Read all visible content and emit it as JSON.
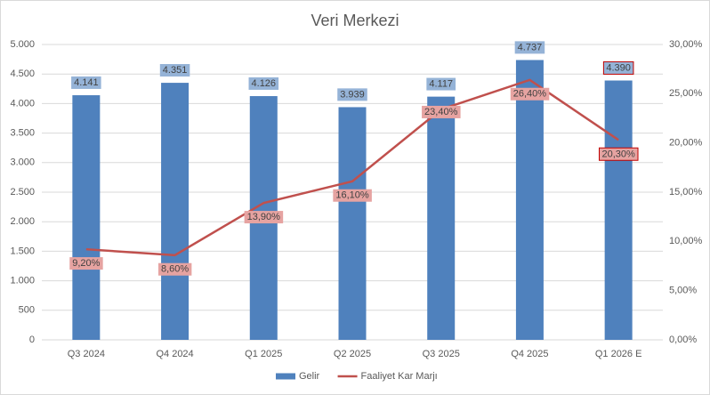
{
  "chart_data": {
    "type": "combo",
    "title": "Veri Merkezi",
    "categories": [
      "Q3 2024",
      "Q4 2024",
      "Q1 2025",
      "Q2 2025",
      "Q3 2025",
      "Q4 2025",
      "Q1 2026 E"
    ],
    "series": [
      {
        "name": "Gelir",
        "type": "bar",
        "color": "#4f81bd",
        "values": [
          4141,
          4351,
          4126,
          3939,
          4117,
          4737,
          4390
        ],
        "value_labels": [
          "4.141",
          "4.351",
          "4.126",
          "3.939",
          "4.117",
          "4.737",
          "4.390"
        ]
      },
      {
        "name": "Faaliyet Kar Marjı",
        "type": "line",
        "axis": "y2",
        "color": "#c0504d",
        "values": [
          9.2,
          8.6,
          13.9,
          16.1,
          23.4,
          26.4,
          20.3
        ],
        "value_labels": [
          "9,20%",
          "8,60%",
          "13,90%",
          "16,10%",
          "23,40%",
          "26,40%",
          "20,30%"
        ]
      }
    ],
    "ylim": [
      0,
      5000
    ],
    "yticks": [
      0,
      {
        "value": 500,
        "label": "500"
      },
      {
        "value": 1000,
        "label": "1.000"
      },
      {
        "value": 1500,
        "label": "1.500"
      },
      {
        "value": 2000,
        "label": "2.000"
      },
      {
        "value": 2500,
        "label": "2.500"
      },
      {
        "value": 3000,
        "label": "3.000"
      },
      {
        "value": 3500,
        "label": "3.500"
      },
      {
        "value": 4000,
        "label": "4.000"
      },
      {
        "value": 4500,
        "label": "4.500"
      },
      {
        "value": 5000,
        "label": "5.000"
      }
    ],
    "y2lim": [
      0,
      30
    ],
    "y2ticks": [
      {
        "value": 0,
        "label": "0,00%"
      },
      {
        "value": 5,
        "label": "5,00%"
      },
      {
        "value": 10,
        "label": "10,00%"
      },
      {
        "value": 15,
        "label": "15,00%"
      },
      {
        "value": 20,
        "label": "20,00%"
      },
      {
        "value": 25,
        "label": "25,00%"
      },
      {
        "value": 30,
        "label": "30,00%"
      }
    ],
    "grid": true,
    "legend": "bottom"
  }
}
